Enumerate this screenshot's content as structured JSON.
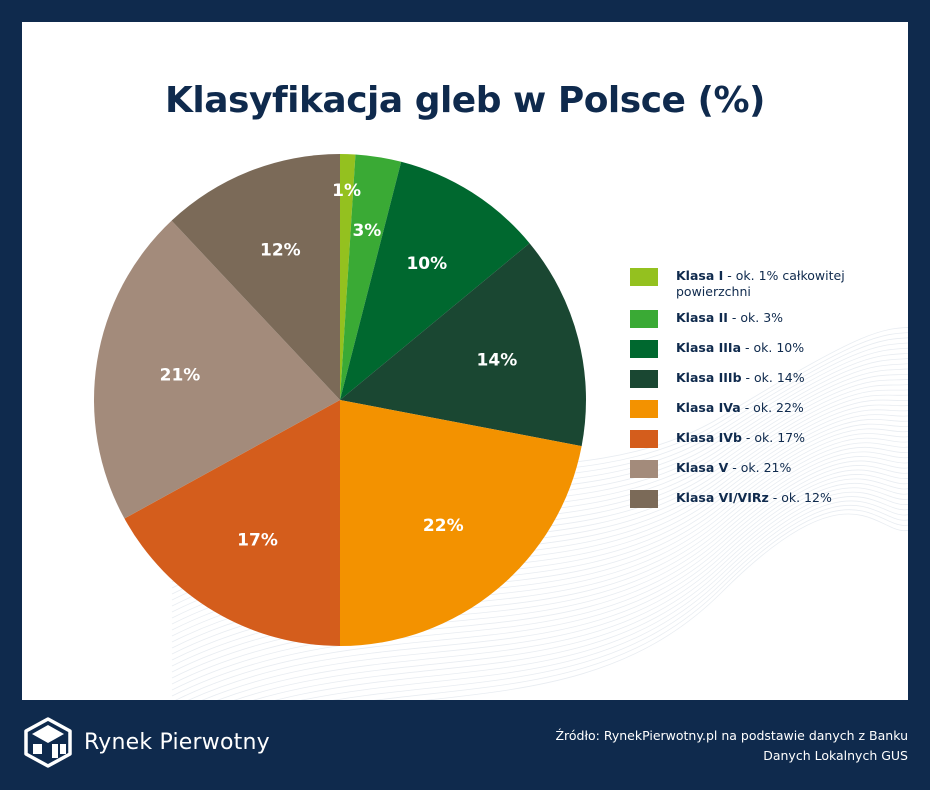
{
  "title": "Klasyfikacja gleb w Polsce (%)",
  "chart_data": {
    "type": "pie",
    "title": "Klasyfikacja gleb w Polsce (%)",
    "slices": [
      {
        "label": "Klasa I",
        "value": 1,
        "display": "1%",
        "color": "#94c11f"
      },
      {
        "label": "Klasa II",
        "value": 3,
        "display": "3%",
        "color": "#3aaa35"
      },
      {
        "label": "Klasa IIIa",
        "value": 10,
        "display": "10%",
        "color": "#00682f"
      },
      {
        "label": "Klasa IIIb",
        "value": 14,
        "display": "14%",
        "color": "#1a4732"
      },
      {
        "label": "Klasa IVa",
        "value": 22,
        "display": "22%",
        "color": "#f39200"
      },
      {
        "label": "Klasa IVb",
        "value": 17,
        "display": "17%",
        "color": "#d45d1c"
      },
      {
        "label": "Klasa V",
        "value": 21,
        "display": "21%",
        "color": "#a38b7b"
      },
      {
        "label": "Klasa VI/VIRz",
        "value": 12,
        "display": "12%",
        "color": "#7b6a58"
      }
    ]
  },
  "legend": [
    {
      "name": "Klasa I",
      "desc": " - ok. 1% całkowitej powierzchni",
      "color": "#94c11f"
    },
    {
      "name": "Klasa II",
      "desc": " - ok. 3%",
      "color": "#3aaa35"
    },
    {
      "name": "Klasa IIIa",
      "desc": " - ok. 10%",
      "color": "#00682f"
    },
    {
      "name": "Klasa IIIb",
      "desc": " - ok. 14%",
      "color": "#1a4732"
    },
    {
      "name": "Klasa IVa",
      "desc": " - ok. 22%",
      "color": "#f39200"
    },
    {
      "name": "Klasa IVb",
      "desc": " - ok. 17%",
      "color": "#d45d1c"
    },
    {
      "name": "Klasa V",
      "desc": " - ok. 21%",
      "color": "#a38b7b"
    },
    {
      "name": "Klasa VI/VIRz",
      "desc": " - ok. 12%",
      "color": "#7b6a58"
    }
  ],
  "footer": {
    "brand": "Rynek Pierwotny",
    "logo_icon": "cube-logo-icon",
    "source_line1": "Źródło: RynekPierwotny.pl na podstawie danych z Banku",
    "source_line2": "Danych Lokalnych GUS"
  },
  "colors": {
    "background": "#0f2a4d",
    "card": "#ffffff",
    "title": "#0f2a4d"
  }
}
